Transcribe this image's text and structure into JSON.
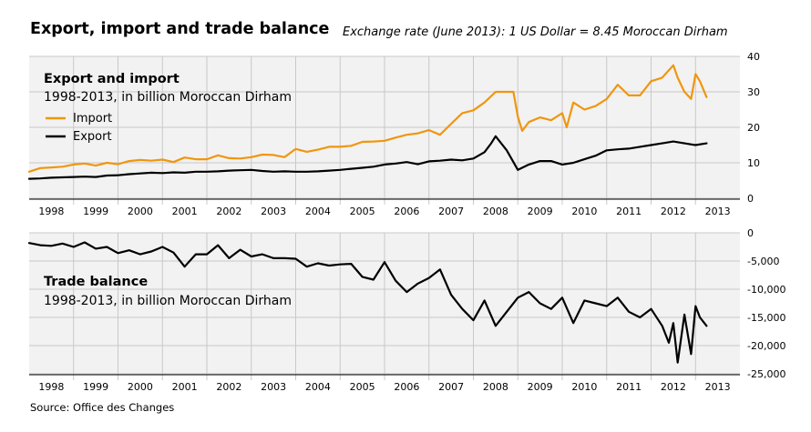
{
  "title": "Export, import and trade balance",
  "note": "Exchange rate (June 2013): 1 US Dollar = 8.45 Moroccan Dirham",
  "source": "Source: Office des Changes",
  "colors": {
    "import": "#f0960f",
    "export": "#000000",
    "balance": "#000000",
    "panel_bg": "#f2f2f2",
    "grid": "#c8c8c8"
  },
  "chart_data": [
    {
      "type": "line",
      "title": "Export and import",
      "subtitle": "1998-2013, in billion Moroccan Dirham",
      "x_ticks": [
        "1998",
        "1999",
        "2000",
        "2001",
        "2002",
        "2003",
        "2004",
        "2005",
        "2006",
        "2007",
        "2008",
        "2009",
        "2010",
        "2011",
        "2012",
        "2013"
      ],
      "xlim": [
        1997.5,
        2013.5
      ],
      "ylim": [
        0,
        40
      ],
      "y_ticks": [
        "0",
        "10",
        "20",
        "30",
        "40"
      ],
      "grid": true,
      "legend": "top-left",
      "series": [
        {
          "name": "Import",
          "color": "#f0960f",
          "x": [
            1997.5,
            1997.75,
            1998.0,
            1998.25,
            1998.5,
            1998.75,
            1999.0,
            1999.25,
            1999.5,
            1999.75,
            2000.0,
            2000.25,
            2000.5,
            2000.75,
            2001.0,
            2001.25,
            2001.5,
            2001.75,
            2002.0,
            2002.25,
            2002.5,
            2002.75,
            2003.0,
            2003.25,
            2003.5,
            2003.75,
            2004.0,
            2004.25,
            2004.5,
            2004.75,
            2005.0,
            2005.25,
            2005.5,
            2005.75,
            2006.0,
            2006.25,
            2006.5,
            2006.75,
            2007.0,
            2007.25,
            2007.5,
            2007.75,
            2008.0,
            2008.25,
            2008.4,
            2008.5,
            2008.6,
            2008.75,
            2009.0,
            2009.25,
            2009.5,
            2009.6,
            2009.75,
            2010.0,
            2010.25,
            2010.5,
            2010.75,
            2011.0,
            2011.25,
            2011.5,
            2011.75,
            2012.0,
            2012.1,
            2012.25,
            2012.4,
            2012.5,
            2012.6,
            2012.75
          ],
          "values": [
            7.5,
            8.5,
            8.7,
            8.9,
            9.5,
            9.8,
            9.2,
            10.0,
            9.6,
            10.5,
            10.8,
            10.6,
            10.9,
            10.2,
            11.5,
            11.0,
            11.0,
            12.1,
            11.3,
            11.2,
            11.6,
            12.3,
            12.2,
            11.6,
            13.9,
            13.1,
            13.7,
            14.5,
            14.5,
            14.8,
            15.9,
            16.0,
            16.2,
            17.1,
            17.9,
            18.3,
            19.2,
            17.9,
            21.0,
            24.0,
            24.8,
            27.0,
            30.0,
            30.0,
            30.0,
            23.0,
            19.0,
            21.5,
            22.8,
            22.0,
            24.0,
            20.0,
            27.0,
            25.0,
            26.0,
            28.0,
            32.0,
            29.0,
            29.0,
            33.0,
            34.0,
            37.5,
            34.0,
            30.0,
            28.0,
            35.0,
            33.0,
            28.5
          ]
        },
        {
          "name": "Export",
          "color": "#000000",
          "x": [
            1997.5,
            1997.75,
            1998.0,
            1998.25,
            1998.5,
            1998.75,
            1999.0,
            1999.25,
            1999.5,
            1999.75,
            2000.0,
            2000.25,
            2000.5,
            2000.75,
            2001.0,
            2001.25,
            2001.5,
            2001.75,
            2002.0,
            2002.25,
            2002.5,
            2002.75,
            2003.0,
            2003.25,
            2003.5,
            2003.75,
            2004.0,
            2004.25,
            2004.5,
            2004.75,
            2005.0,
            2005.25,
            2005.5,
            2005.75,
            2006.0,
            2006.25,
            2006.5,
            2006.75,
            2007.0,
            2007.25,
            2007.5,
            2007.75,
            2007.9,
            2008.0,
            2008.25,
            2008.5,
            2008.75,
            2009.0,
            2009.25,
            2009.5,
            2009.75,
            2010.0,
            2010.25,
            2010.5,
            2010.75,
            2011.0,
            2011.25,
            2011.5,
            2011.75,
            2012.0,
            2012.25,
            2012.5,
            2012.75
          ],
          "values": [
            5.5,
            5.6,
            5.8,
            5.9,
            6.0,
            6.1,
            6.0,
            6.4,
            6.5,
            6.8,
            7.0,
            7.2,
            7.1,
            7.3,
            7.2,
            7.5,
            7.5,
            7.6,
            7.8,
            7.9,
            8.0,
            7.7,
            7.5,
            7.6,
            7.5,
            7.5,
            7.6,
            7.8,
            8.0,
            8.3,
            8.6,
            8.9,
            9.5,
            9.8,
            10.2,
            9.6,
            10.4,
            10.6,
            10.9,
            10.7,
            11.2,
            13.0,
            15.5,
            17.5,
            13.5,
            8.0,
            9.5,
            10.5,
            10.5,
            9.5,
            10.0,
            11.0,
            12.0,
            13.5,
            13.8,
            14.0,
            14.5,
            15.0,
            15.5,
            16.0,
            15.5,
            15.0,
            15.5
          ]
        }
      ]
    },
    {
      "type": "line",
      "title": "Trade balance",
      "subtitle": "1998-2013, in billion Moroccan Dirham",
      "x_ticks": [
        "1998",
        "1999",
        "2000",
        "2001",
        "2002",
        "2003",
        "2004",
        "2005",
        "2006",
        "2007",
        "2008",
        "2009",
        "2010",
        "2011",
        "2012",
        "2013"
      ],
      "xlim": [
        1997.5,
        2013.5
      ],
      "ylim": [
        -25000,
        0
      ],
      "y_ticks": [
        "0",
        "-5,000",
        "-10,000",
        "-15,000",
        "-20,000",
        "-25,000"
      ],
      "grid": true,
      "series": [
        {
          "name": "Trade balance",
          "color": "#000000",
          "x": [
            1997.5,
            1997.75,
            1998.0,
            1998.25,
            1998.5,
            1998.75,
            1999.0,
            1999.25,
            1999.5,
            1999.75,
            2000.0,
            2000.25,
            2000.5,
            2000.75,
            2001.0,
            2001.25,
            2001.5,
            2001.75,
            2002.0,
            2002.25,
            2002.5,
            2002.75,
            2003.0,
            2003.25,
            2003.5,
            2003.75,
            2004.0,
            2004.25,
            2004.5,
            2004.75,
            2005.0,
            2005.25,
            2005.5,
            2005.75,
            2006.0,
            2006.25,
            2006.5,
            2006.75,
            2007.0,
            2007.25,
            2007.5,
            2007.75,
            2008.0,
            2008.25,
            2008.5,
            2008.75,
            2009.0,
            2009.25,
            2009.5,
            2009.75,
            2010.0,
            2010.25,
            2010.5,
            2010.75,
            2011.0,
            2011.25,
            2011.5,
            2011.75,
            2011.9,
            2012.0,
            2012.1,
            2012.25,
            2012.4,
            2012.5,
            2012.6,
            2012.75
          ],
          "values": [
            -1800,
            -2200,
            -2300,
            -1900,
            -2500,
            -1700,
            -2800,
            -2500,
            -3600,
            -3100,
            -3800,
            -3300,
            -2500,
            -3500,
            -6000,
            -3800,
            -3800,
            -2200,
            -4500,
            -3000,
            -4200,
            -3800,
            -4500,
            -4500,
            -4600,
            -6000,
            -5400,
            -5800,
            -5600,
            -5500,
            -7800,
            -8300,
            -5200,
            -8500,
            -10500,
            -9000,
            -8000,
            -6500,
            -11000,
            -13500,
            -15500,
            -12000,
            -16500,
            -14000,
            -11500,
            -10500,
            -12500,
            -13500,
            -11500,
            -16000,
            -12000,
            -12500,
            -13000,
            -11500,
            -14000,
            -15000,
            -13500,
            -16500,
            -19500,
            -16000,
            -23000,
            -14500,
            -21500,
            -13000,
            -15000,
            -16500
          ]
        }
      ]
    }
  ]
}
